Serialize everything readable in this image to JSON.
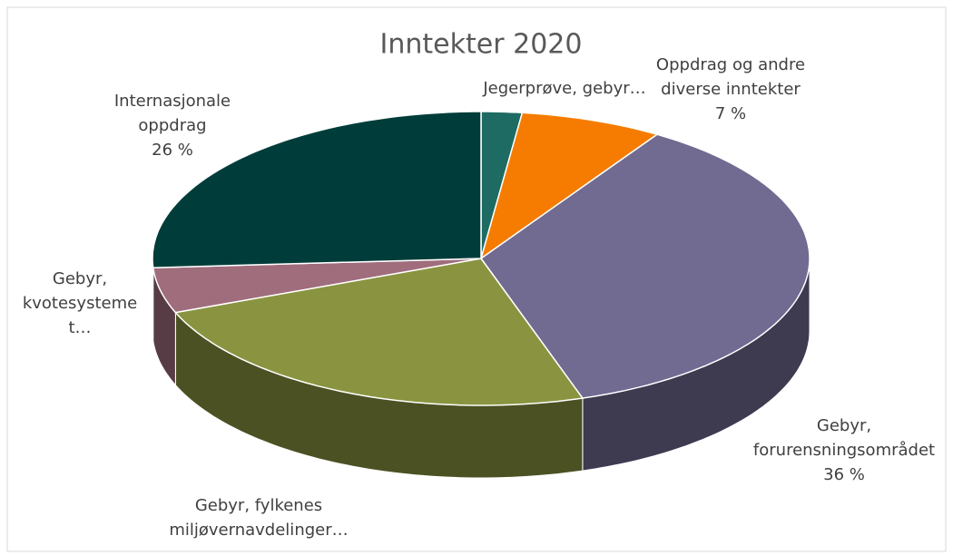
{
  "chart_data": {
    "type": "pie",
    "title": "Inntekter 2020",
    "categories": [
      "Jegerprøve, gebyr…",
      "Oppdrag og andre diverse inntekter",
      "Gebyr, forurensningsområdet",
      "Gebyr, fylkenes miljøvernavdelinger…",
      "Gebyr, kvotesystemet…",
      "Internasjonale oppdrag"
    ],
    "values": [
      2,
      7,
      36,
      24,
      5,
      26
    ],
    "value_labels": [
      null,
      "7 %",
      "36 %",
      null,
      null,
      "26 %"
    ],
    "colors": [
      "#1e6b63",
      "#f57c00",
      "#716a91",
      "#8a9440",
      "#a06d7d",
      "#003d3a"
    ]
  }
}
